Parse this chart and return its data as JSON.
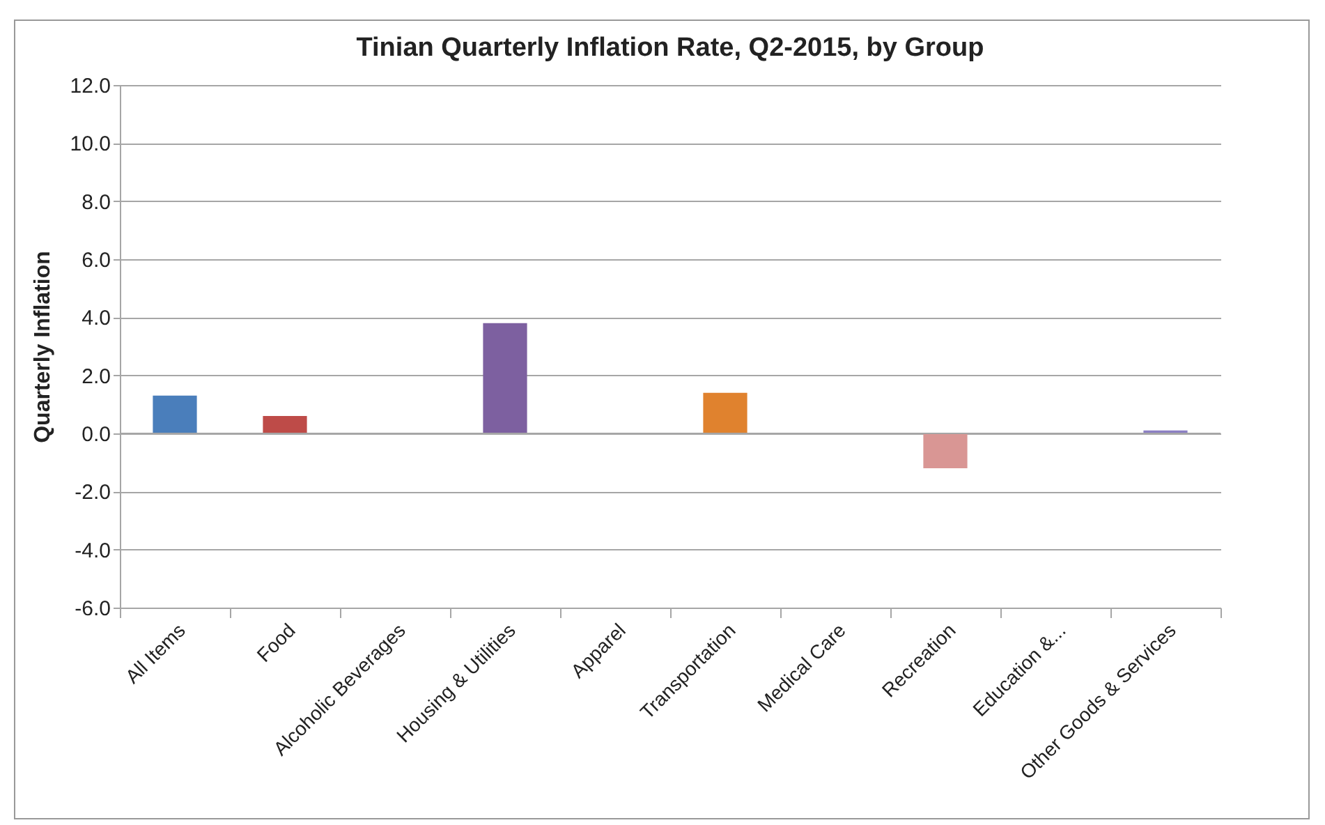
{
  "chart_data": {
    "type": "bar",
    "title": "Tinian Quarterly Inflation Rate, Q2-2015, by Group",
    "ylabel": "Quarterly Inflation",
    "categories": [
      "All Items",
      "Food",
      "Alcoholic Beverages",
      "Housing & Utilities",
      "Apparel",
      "Transportation",
      "Medical Care",
      "Recreation",
      "Education &...",
      "Other Goods & Services"
    ],
    "values": [
      1.3,
      0.6,
      0,
      3.8,
      0,
      1.4,
      0,
      -1.2,
      0,
      0.1
    ],
    "colors": [
      "#4a7ebb",
      "#be4b48",
      "#98b954",
      "#7d60a0",
      "#46aac5",
      "#e0822e",
      "#4f81bd",
      "#d99694",
      "#c3d69b",
      "#8b7fc3"
    ],
    "ylim": [
      -6,
      12
    ],
    "yticks": [
      {
        "value": -6,
        "label": "-6.0"
      },
      {
        "value": -4,
        "label": "-4.0"
      },
      {
        "value": -2,
        "label": "-2.0"
      },
      {
        "value": 0,
        "label": "0.0"
      },
      {
        "value": 2,
        "label": "2.0"
      },
      {
        "value": 4,
        "label": "4.0"
      },
      {
        "value": 6,
        "label": "6.0"
      },
      {
        "value": 8,
        "label": "8.0"
      },
      {
        "value": 10,
        "label": "10.0"
      },
      {
        "value": 12,
        "label": "12.0"
      }
    ],
    "grid": "y"
  }
}
